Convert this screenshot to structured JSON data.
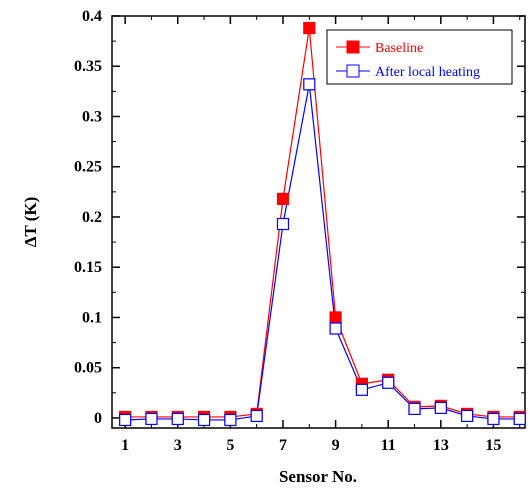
{
  "chart_data": {
    "type": "line",
    "xlabel": "Sensor No.",
    "ylabel": "ΔT (K)",
    "xlim": [
      0.5,
      16.2
    ],
    "ylim": [
      -0.01,
      0.4
    ],
    "x_ticks": [
      1,
      3,
      5,
      7,
      9,
      11,
      13,
      15
    ],
    "y_ticks": [
      0,
      0.05,
      0.1,
      0.15,
      0.2,
      0.25,
      0.3,
      0.35,
      0.4
    ],
    "y_tick_labels": [
      "0",
      "0.05",
      "0.1",
      "0.15",
      "0.2",
      "0.25",
      "0.3",
      "0.35",
      "0.4"
    ],
    "x": [
      1,
      2,
      3,
      4,
      5,
      6,
      7,
      8,
      9,
      10,
      11,
      12,
      13,
      14,
      15,
      16
    ],
    "grid": false,
    "legend_position": "top-right",
    "series": [
      {
        "name": "Baseline",
        "color": "#ff0000",
        "marker": "filled-square",
        "values": [
          0.001,
          0.001,
          0.001,
          0.001,
          0.001,
          0.004,
          0.218,
          0.388,
          0.1,
          0.034,
          0.038,
          0.011,
          0.012,
          0.004,
          0.001,
          0.001
        ]
      },
      {
        "name": "After local heating",
        "color": "#0000ff",
        "marker": "open-square",
        "values": [
          -0.002,
          -0.001,
          -0.001,
          -0.002,
          -0.002,
          0.002,
          0.193,
          0.332,
          0.089,
          0.028,
          0.035,
          0.009,
          0.01,
          0.002,
          -0.001,
          -0.001
        ]
      }
    ]
  }
}
